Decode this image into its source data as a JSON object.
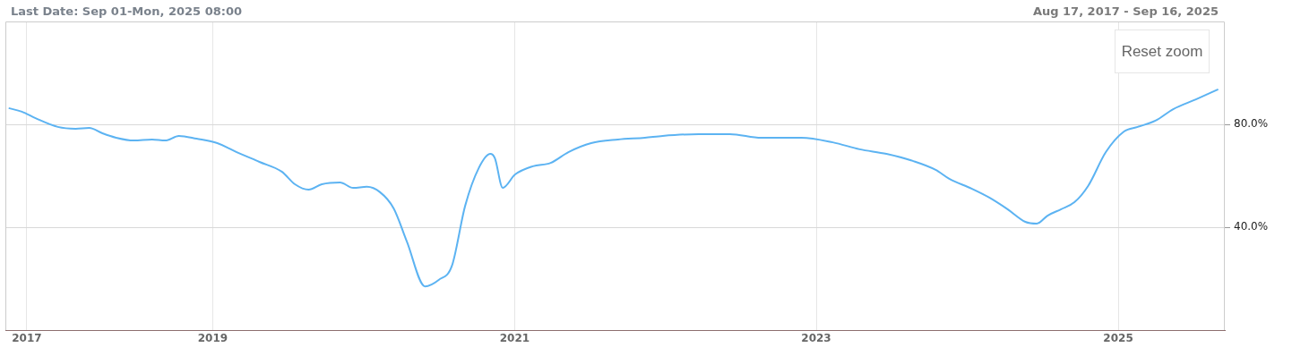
{
  "chart_data": {
    "type": "line",
    "title": "Last Date: Sep 01-Mon, 2025 08:00",
    "subtitle": "Aug 17, 2017 - Sep 16, 2025",
    "annotations": [
      "Reset zoom"
    ],
    "x": [
      "2017-08-25",
      "2017-09-26",
      "2017-10-29",
      "2017-12-22",
      "2018-02-03",
      "2018-03-08",
      "2018-04-09",
      "2018-05-12",
      "2018-06-24",
      "2018-08-07",
      "2018-09-08",
      "2018-10-11",
      "2018-11-23",
      "2019-01-12",
      "2019-02-28",
      "2019-04-24",
      "2019-06-17",
      "2019-07-19",
      "2019-08-21",
      "2019-09-22",
      "2019-11-05",
      "2019-12-07",
      "2020-01-09",
      "2020-02-10",
      "2020-03-14",
      "2020-04-15",
      "2020-05-29",
      "2020-07-01",
      "2020-08-02",
      "2020-09-03",
      "2020-10-06",
      "2020-11-03",
      "2020-11-14",
      "2020-12-03",
      "2021-01-02",
      "2021-02-14",
      "2021-03-29",
      "2021-05-11",
      "2021-07-05",
      "2021-09-08",
      "2021-11-12",
      "2021-12-25",
      "2022-03-22",
      "2022-06-06",
      "2022-08-21",
      "2022-11-26",
      "2023-02-10",
      "2023-04-16",
      "2023-06-20",
      "2023-08-24",
      "2023-10-17",
      "2023-11-19",
      "2024-01-12",
      "2024-02-24",
      "2024-04-08",
      "2024-05-21",
      "2024-06-18",
      "2024-07-14",
      "2024-08-16",
      "2024-09-17",
      "2024-10-20",
      "2024-12-02",
      "2025-01-15",
      "2025-02-17",
      "2025-04-01",
      "2025-05-14",
      "2025-07-08",
      "2025-08-31"
    ],
    "series": [
      {
        "color": "#5cb3f2",
        "values": [
          86.3,
          84.9,
          82.4,
          79.0,
          78.3,
          78.6,
          76.5,
          74.8,
          73.7,
          74.1,
          73.7,
          75.5,
          74.4,
          72.7,
          69.2,
          65.4,
          61.6,
          56.7,
          54.6,
          56.7,
          57.4,
          55.3,
          55.7,
          53.6,
          47.3,
          34.4,
          17.0,
          19.5,
          25.0,
          48.3,
          63.0,
          68.5,
          66.8,
          55.3,
          60.5,
          63.7,
          65.0,
          69.2,
          72.7,
          74.1,
          74.8,
          75.5,
          76.2,
          76.2,
          74.8,
          74.8,
          73.0,
          70.3,
          68.5,
          65.7,
          62.3,
          58.8,
          55.0,
          51.5,
          47.0,
          42.1,
          41.4,
          44.5,
          47.0,
          49.7,
          56.0,
          69.2,
          77.2,
          79.0,
          81.4,
          85.9,
          89.7,
          93.6
        ]
      }
    ],
    "xlim": [
      "2017-08-17",
      "2025-09-16"
    ],
    "xticks": [
      {
        "value": "2017-10-08",
        "label": "2017"
      },
      "2019",
      "2021",
      "2023",
      "2025"
    ],
    "ylim": [
      0,
      120
    ],
    "yticks": [
      {
        "value": 40,
        "label": "40.0%"
      },
      {
        "value": 80,
        "label": "80.0%"
      }
    ],
    "grid": true,
    "legend": false,
    "marker": "none",
    "line_style": "solid"
  }
}
